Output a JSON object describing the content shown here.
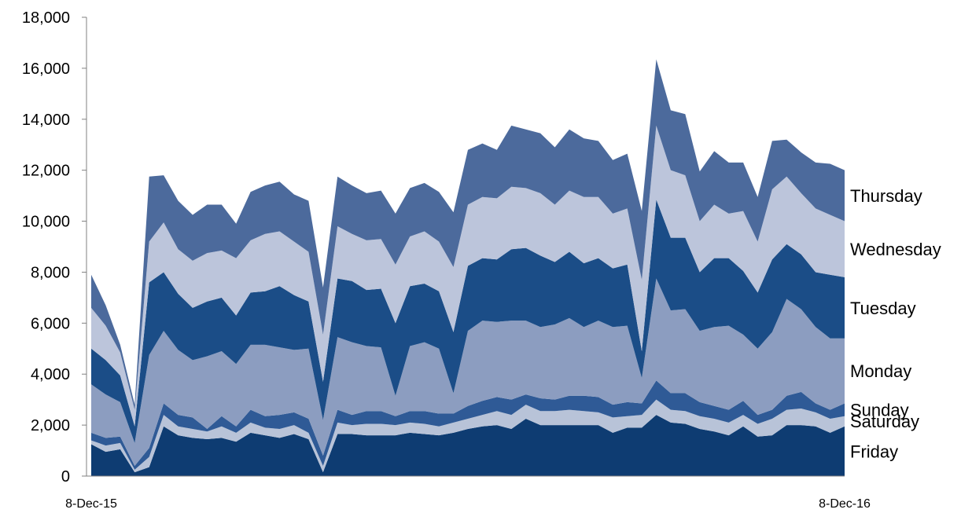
{
  "chart_data": {
    "type": "area",
    "stacked": true,
    "grid": false,
    "legend": "inline-right",
    "ylim": [
      0,
      18000
    ],
    "y_ticks": [
      "0",
      "2,000",
      "4,000",
      "6,000",
      "8,000",
      "10,000",
      "12,000",
      "14,000",
      "16,000",
      "18,000"
    ],
    "x_tick_labels": [
      {
        "label": "8-Dec-15",
        "index": 0
      },
      {
        "label": "8-Dec-16",
        "index": 52
      }
    ],
    "series": [
      {
        "name": "Friday",
        "color": "#0E3C72",
        "values": [
          1250,
          950,
          1050,
          150,
          350,
          1950,
          1600,
          1500,
          1450,
          1500,
          1350,
          1700,
          1600,
          1500,
          1650,
          1450,
          150,
          1650,
          1650,
          1600,
          1600,
          1600,
          1700,
          1650,
          1600,
          1700,
          1850,
          1950,
          2000,
          1850,
          2250,
          2000,
          2000,
          2000,
          2000,
          2000,
          1700,
          1900,
          1900,
          2400,
          2100,
          2050,
          1850,
          1750,
          1600,
          1950,
          1550,
          1600,
          2000,
          2000,
          1950,
          1700,
          1950
        ]
      },
      {
        "name": "Saturday",
        "color": "#B8C3D8",
        "values": [
          150,
          250,
          250,
          100,
          400,
          450,
          350,
          350,
          300,
          450,
          350,
          400,
          300,
          350,
          350,
          250,
          250,
          450,
          350,
          450,
          450,
          400,
          400,
          400,
          350,
          400,
          400,
          450,
          550,
          550,
          550,
          550,
          550,
          600,
          550,
          500,
          600,
          450,
          500,
          600,
          500,
          500,
          500,
          500,
          500,
          450,
          500,
          650,
          600,
          650,
          550,
          550,
          400
        ]
      },
      {
        "name": "Sunday",
        "color": "#2F5A96",
        "values": [
          300,
          300,
          250,
          150,
          350,
          450,
          450,
          450,
          100,
          400,
          250,
          500,
          450,
          550,
          500,
          550,
          400,
          500,
          400,
          500,
          500,
          350,
          450,
          500,
          500,
          350,
          500,
          550,
          550,
          600,
          400,
          500,
          450,
          550,
          600,
          600,
          500,
          550,
          450,
          750,
          650,
          700,
          550,
          500,
          500,
          550,
          350,
          350,
          550,
          650,
          350,
          350,
          500
        ]
      },
      {
        "name": "Monday",
        "color": "#8C9DC0",
        "values": [
          1900,
          1700,
          1350,
          900,
          3650,
          2850,
          2550,
          2250,
          2850,
          2550,
          2450,
          2550,
          2800,
          2650,
          2450,
          2750,
          1400,
          2850,
          2850,
          2550,
          2500,
          800,
          2550,
          2700,
          2550,
          800,
          2950,
          3150,
          2950,
          3100,
          2900,
          2800,
          2950,
          3050,
          2700,
          3000,
          3050,
          3000,
          1000,
          4000,
          3250,
          3300,
          2800,
          3100,
          3300,
          2600,
          2600,
          3050,
          3800,
          3250,
          3000,
          2800,
          2550
        ]
      },
      {
        "name": "Tuesday",
        "color": "#1B4D87",
        "values": [
          1400,
          1350,
          1050,
          650,
          2850,
          2300,
          2200,
          2050,
          2150,
          2100,
          1900,
          2050,
          2100,
          2400,
          2150,
          1850,
          1500,
          2300,
          2400,
          2200,
          2300,
          2850,
          2350,
          2300,
          2250,
          2400,
          2550,
          2450,
          2450,
          2800,
          2850,
          2800,
          2450,
          2600,
          2500,
          2450,
          2300,
          2400,
          1050,
          3100,
          2850,
          2800,
          2300,
          2700,
          2650,
          2500,
          2200,
          2850,
          2150,
          2150,
          2150,
          2500,
          2400
        ]
      },
      {
        "name": "Wednesday",
        "color": "#BCC5DB",
        "values": [
          1600,
          1350,
          900,
          650,
          1600,
          1950,
          1750,
          1850,
          1900,
          1850,
          2250,
          2050,
          2250,
          2150,
          2100,
          1950,
          1850,
          2050,
          1850,
          1950,
          1950,
          2300,
          1950,
          2050,
          1950,
          2550,
          2400,
          2400,
          2400,
          2450,
          2350,
          2450,
          2250,
          2400,
          2600,
          2400,
          2150,
          2200,
          2800,
          2900,
          2650,
          2450,
          2000,
          2100,
          1750,
          2350,
          2000,
          2750,
          2650,
          2400,
          2500,
          2350,
          2200
        ]
      },
      {
        "name": "Thursday",
        "color": "#4C6A9C",
        "values": [
          1300,
          800,
          300,
          200,
          2550,
          1850,
          1900,
          1800,
          1900,
          1800,
          1350,
          1900,
          1900,
          1950,
          1850,
          2000,
          1850,
          1950,
          1900,
          1850,
          1900,
          2000,
          1900,
          1900,
          1950,
          2150,
          2150,
          2100,
          1900,
          2400,
          2300,
          2350,
          2250,
          2400,
          2300,
          2200,
          2100,
          2150,
          2700,
          2600,
          2350,
          2400,
          1950,
          2100,
          2000,
          1900,
          1750,
          1900,
          1450,
          1600,
          1800,
          2000,
          2000
        ]
      }
    ]
  }
}
